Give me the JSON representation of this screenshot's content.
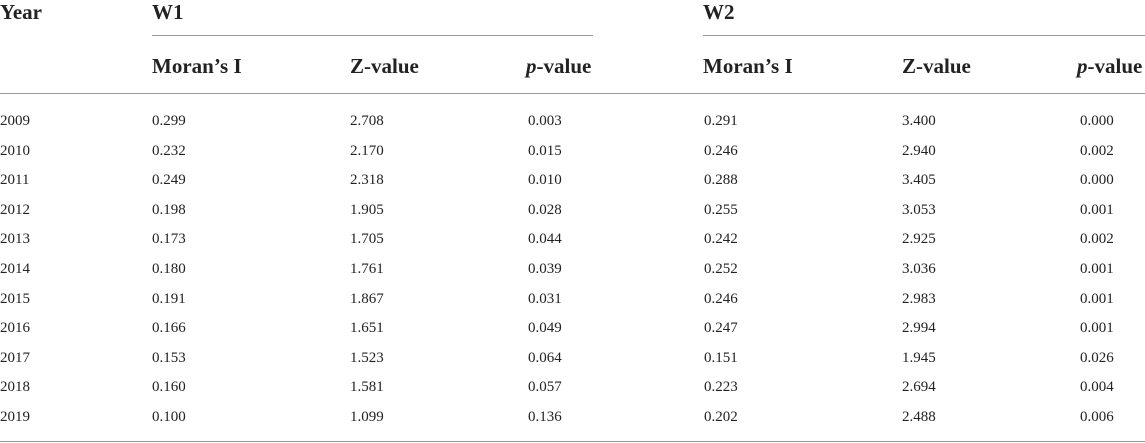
{
  "table": {
    "year_header": "Year",
    "groups": [
      {
        "name": "W1",
        "columns": [
          "Moran’s I",
          "Z-value",
          "-value"
        ]
      },
      {
        "name": "W2",
        "columns": [
          "Moran’s I",
          "Z-value",
          "-value"
        ]
      }
    ],
    "p_prefix": "p",
    "rows": [
      [
        "2009",
        "0.299",
        "2.708",
        "0.003",
        "0.291",
        "3.400",
        "0.000"
      ],
      [
        "2010",
        "0.232",
        "2.170",
        "0.015",
        "0.246",
        "2.940",
        "0.002"
      ],
      [
        "2011",
        "0.249",
        "2.318",
        "0.010",
        "0.288",
        "3.405",
        "0.000"
      ],
      [
        "2012",
        "0.198",
        "1.905",
        "0.028",
        "0.255",
        "3.053",
        "0.001"
      ],
      [
        "2013",
        "0.173",
        "1.705",
        "0.044",
        "0.242",
        "2.925",
        "0.002"
      ],
      [
        "2014",
        "0.180",
        "1.761",
        "0.039",
        "0.252",
        "3.036",
        "0.001"
      ],
      [
        "2015",
        "0.191",
        "1.867",
        "0.031",
        "0.246",
        "2.983",
        "0.001"
      ],
      [
        "2016",
        "0.166",
        "1.651",
        "0.049",
        "0.247",
        "2.994",
        "0.001"
      ],
      [
        "2017",
        "0.153",
        "1.523",
        "0.064",
        "0.151",
        "1.945",
        "0.026"
      ],
      [
        "2018",
        "0.160",
        "1.581",
        "0.057",
        "0.223",
        "2.694",
        "0.004"
      ],
      [
        "2019",
        "0.100",
        "1.099",
        "0.136",
        "0.202",
        "2.488",
        "0.006"
      ]
    ]
  }
}
